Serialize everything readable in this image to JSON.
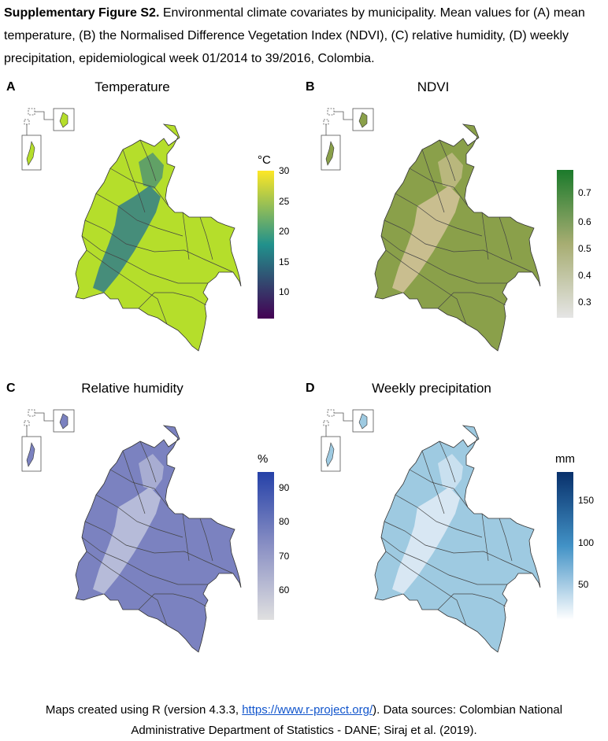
{
  "caption": {
    "label": "Supplementary Figure S2.",
    "text": " Environmental climate covariates by municipality. Mean values for (A) mean temperature, (B) the Normalised Difference Vegetation Index (NDVI), (C) relative humidity, (D) weekly precipitation, epidemiological week 01/2014 to 39/2016, Colombia."
  },
  "panels": [
    {
      "letter": "A",
      "title": "Temperature",
      "unit": "°C",
      "ticks": [
        "30",
        "25",
        "20",
        "15",
        "10"
      ],
      "colors": {
        "top": "#fde725",
        "mid": "#21918c",
        "bottom": "#440154",
        "land": "#b5de2b",
        "highland": "#2a788e"
      }
    },
    {
      "letter": "B",
      "title": "NDVI",
      "unit": "",
      "ticks": [
        "0.7",
        "0.6",
        "0.5",
        "0.4",
        "0.3"
      ],
      "colors": {
        "top": "#1b7a2b",
        "mid": "#a7ad72",
        "bottom": "#e5e5e5",
        "land": "#8aa04a",
        "highland": "#d8c6a0"
      }
    },
    {
      "letter": "C",
      "title": "Relative humidity",
      "unit": "%",
      "ticks": [
        "90",
        "80",
        "70",
        "60"
      ],
      "colors": {
        "top": "#2541a8",
        "mid": "#8a90c4",
        "bottom": "#e0e0e0",
        "land": "#7b82c0",
        "highland": "#c6c9de"
      }
    },
    {
      "letter": "D",
      "title": "Weekly precipitation",
      "unit": "mm",
      "ticks": [
        "150",
        "100",
        "50"
      ],
      "colors": {
        "top": "#08306b",
        "mid": "#4292c6",
        "bottom": "#ffffff",
        "land": "#9ecae1",
        "highland": "#e6eef8"
      }
    }
  ],
  "footer": {
    "line1_pre": "Maps created using R (version 4.3.3, ",
    "link": "https://www.r-project.org/",
    "line1_post": "). Data sources: Colombian National",
    "line2": "Administrative Department of Statistics - DANE; Siraj et al. (2019)."
  }
}
